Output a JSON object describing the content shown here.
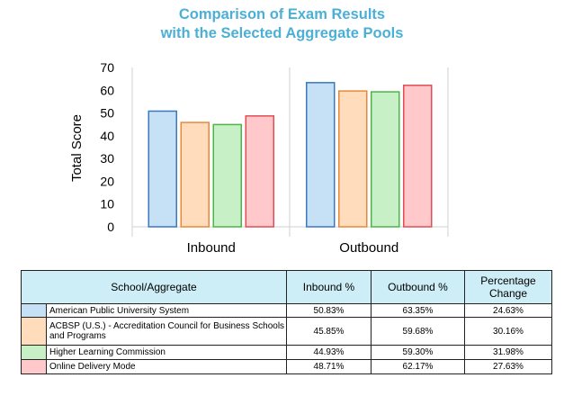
{
  "chart_data": {
    "type": "bar",
    "title_lines": [
      "Comparison of Exam Results",
      "with the Selected Aggregate Pools"
    ],
    "ylabel": "Total Score",
    "xlabel": "",
    "ylim": [
      0,
      70
    ],
    "yticks": [
      0,
      10,
      20,
      30,
      40,
      50,
      60,
      70
    ],
    "categories": [
      "Inbound",
      "Outbound"
    ],
    "grid": false,
    "series": [
      {
        "name": "American Public University System",
        "values": [
          50.83,
          63.35
        ],
        "fill": "#c6e0f5",
        "stroke": "#3a78c2"
      },
      {
        "name": "ACBSP (U.S.) - Accreditation Council for Business Schools and Programs",
        "values": [
          45.85,
          59.68
        ],
        "fill": "#ffdcbb",
        "stroke": "#e8883a"
      },
      {
        "name": "Higher Learning Commission",
        "values": [
          44.93,
          59.3
        ],
        "fill": "#c8f0c6",
        "stroke": "#4cb548"
      },
      {
        "name": "Online Delivery Mode",
        "values": [
          48.71,
          62.17
        ],
        "fill": "#ffc8ca",
        "stroke": "#e24d56"
      }
    ]
  },
  "table": {
    "headers": [
      "School/Aggregate",
      "Inbound %",
      "Outbound %",
      "Percentage Change"
    ],
    "rows": [
      {
        "name": "American Public University System",
        "inbound": "50.83%",
        "outbound": "63.35%",
        "change": "24.63%",
        "color": "#c6e0f5"
      },
      {
        "name": "ACBSP (U.S.) - Accreditation Council for Business Schools and Programs",
        "inbound": "45.85%",
        "outbound": "59.68%",
        "change": "30.16%",
        "color": "#ffdcbb"
      },
      {
        "name": "Higher Learning Commission",
        "inbound": "44.93%",
        "outbound": "59.30%",
        "change": "31.98%",
        "color": "#c8f0c6"
      },
      {
        "name": "Online Delivery Mode",
        "inbound": "48.71%",
        "outbound": "62.17%",
        "change": "27.63%",
        "color": "#ffc8ca"
      }
    ]
  }
}
